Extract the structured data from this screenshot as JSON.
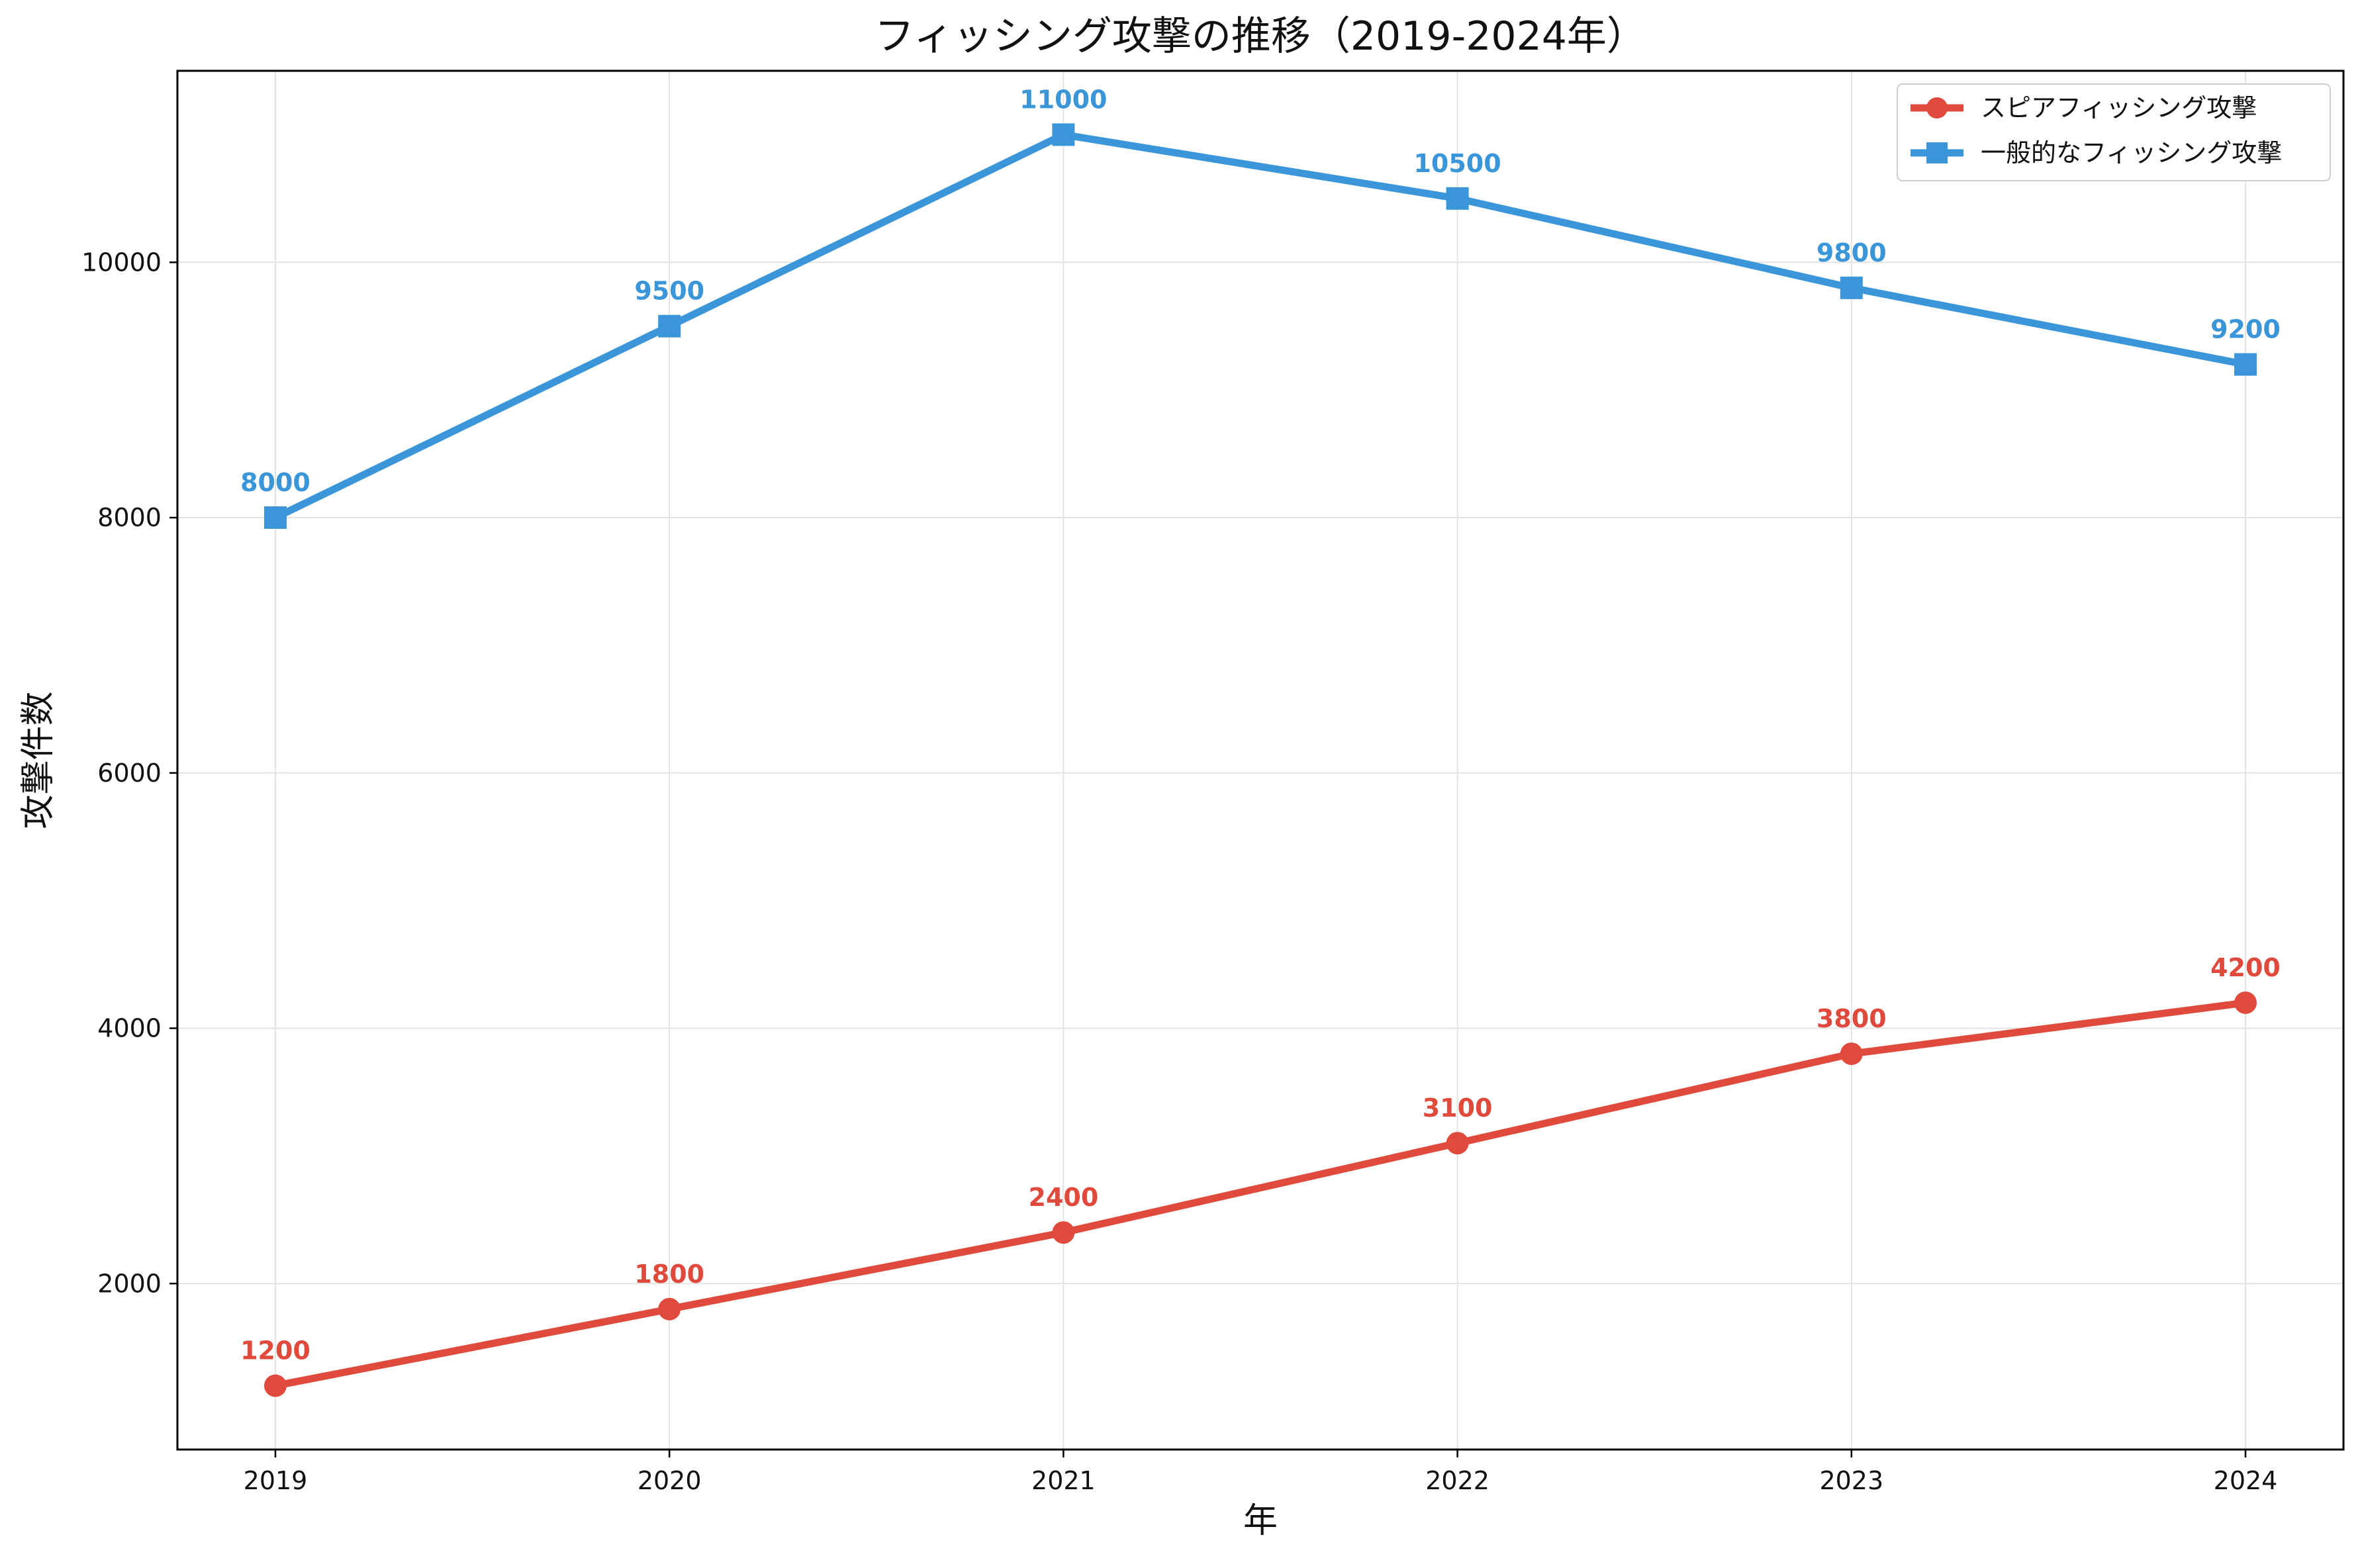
{
  "chart_data": {
    "type": "line",
    "title": "フィッシング攻撃の推移（2019-2024年）",
    "xlabel": "年",
    "ylabel": "攻撃件数",
    "categories": [
      "2019",
      "2020",
      "2021",
      "2022",
      "2023",
      "2024"
    ],
    "yticks": [
      2000,
      4000,
      6000,
      8000,
      10000
    ],
    "ylim": [
      700,
      11500
    ],
    "grid": true,
    "legend_position": "top-right",
    "series": [
      {
        "name": "スピアフィッシング攻撃",
        "color": "#e04a3c",
        "marker": "circle",
        "values": [
          1200,
          1800,
          2400,
          3100,
          3800,
          4200
        ]
      },
      {
        "name": "一般的なフィッシング攻撃",
        "color": "#3a96d8",
        "marker": "square",
        "values": [
          8000,
          9500,
          11000,
          10500,
          9800,
          9200
        ]
      }
    ]
  }
}
